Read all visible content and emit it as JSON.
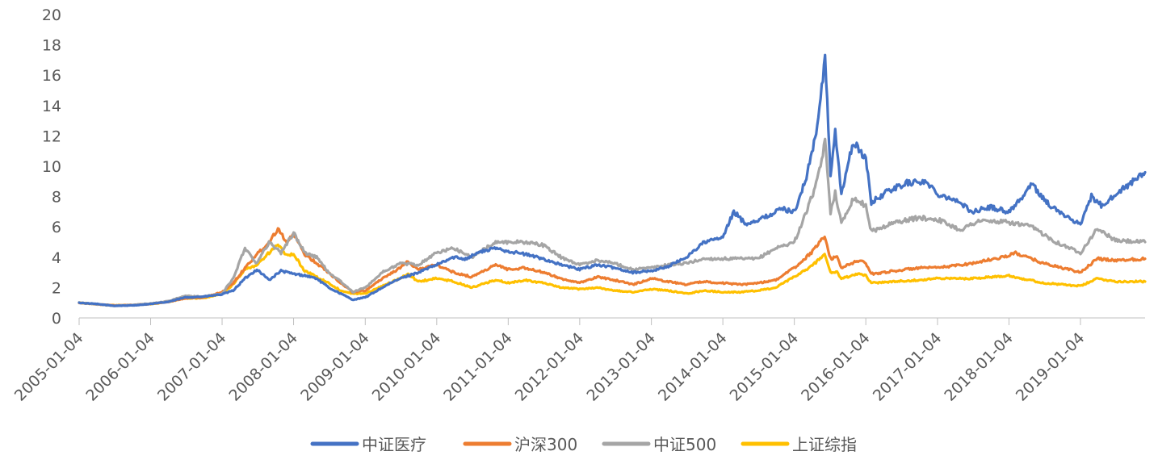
{
  "chart_data": {
    "type": "line",
    "title": "",
    "xlabel": "",
    "ylabel": "",
    "ylim": [
      0,
      20
    ],
    "y_ticks": [
      "0",
      "2",
      "4",
      "6",
      "8",
      "10",
      "12",
      "14",
      "16",
      "18",
      "20"
    ],
    "x_ticks": [
      "2005-01-04",
      "2006-01-04",
      "2007-01-04",
      "2008-01-04",
      "2009-01-04",
      "2010-01-04",
      "2011-01-04",
      "2012-01-04",
      "2013-01-04",
      "2014-01-04",
      "2015-01-04",
      "2016-01-04",
      "2017-01-04",
      "2018-01-04",
      "2019-01-04"
    ],
    "x_range": [
      "2005-01-04",
      "2019-11-30"
    ],
    "grid": false,
    "legend_position": "bottom",
    "series": [
      {
        "name": "中证医疗",
        "color": "#4472C4",
        "points": [
          [
            "2005-01-04",
            1.0
          ],
          [
            "2005-04-01",
            0.92
          ],
          [
            "2005-07-01",
            0.8
          ],
          [
            "2005-10-01",
            0.82
          ],
          [
            "2006-01-04",
            0.92
          ],
          [
            "2006-04-01",
            1.05
          ],
          [
            "2006-07-01",
            1.35
          ],
          [
            "2006-10-01",
            1.4
          ],
          [
            "2007-01-04",
            1.55
          ],
          [
            "2007-03-01",
            1.8
          ],
          [
            "2007-05-01",
            2.6
          ],
          [
            "2007-07-01",
            3.2
          ],
          [
            "2007-09-01",
            2.5
          ],
          [
            "2007-11-01",
            3.1
          ],
          [
            "2008-01-04",
            2.9
          ],
          [
            "2008-03-01",
            2.8
          ],
          [
            "2008-05-01",
            2.6
          ],
          [
            "2008-07-01",
            2.0
          ],
          [
            "2008-09-01",
            1.6
          ],
          [
            "2008-11-01",
            1.2
          ],
          [
            "2009-01-04",
            1.35
          ],
          [
            "2009-04-01",
            2.0
          ],
          [
            "2009-07-01",
            2.6
          ],
          [
            "2009-10-01",
            3.0
          ],
          [
            "2010-01-04",
            3.5
          ],
          [
            "2010-04-01",
            4.0
          ],
          [
            "2010-06-01",
            3.9
          ],
          [
            "2010-08-01",
            4.3
          ],
          [
            "2010-11-01",
            4.6
          ],
          [
            "2011-01-04",
            4.4
          ],
          [
            "2011-04-01",
            4.2
          ],
          [
            "2011-07-01",
            3.9
          ],
          [
            "2011-10-01",
            3.5
          ],
          [
            "2012-01-04",
            3.2
          ],
          [
            "2012-04-01",
            3.5
          ],
          [
            "2012-07-01",
            3.3
          ],
          [
            "2012-10-01",
            3.0
          ],
          [
            "2013-01-04",
            3.1
          ],
          [
            "2013-04-01",
            3.4
          ],
          [
            "2013-07-01",
            4.0
          ],
          [
            "2013-10-01",
            5.0
          ],
          [
            "2014-01-04",
            5.3
          ],
          [
            "2014-03-01",
            7.0
          ],
          [
            "2014-05-01",
            6.2
          ],
          [
            "2014-08-01",
            6.6
          ],
          [
            "2014-11-01",
            7.2
          ],
          [
            "2015-01-04",
            7.0
          ],
          [
            "2015-03-01",
            9.0
          ],
          [
            "2015-05-01",
            12.5
          ],
          [
            "2015-06-10",
            17.2
          ],
          [
            "2015-07-08",
            9.5
          ],
          [
            "2015-08-01",
            12.2
          ],
          [
            "2015-09-01",
            8.2
          ],
          [
            "2015-11-01",
            11.6
          ],
          [
            "2016-01-04",
            10.5
          ],
          [
            "2016-02-01",
            7.6
          ],
          [
            "2016-05-01",
            8.4
          ],
          [
            "2016-08-01",
            8.9
          ],
          [
            "2016-11-01",
            9.0
          ],
          [
            "2017-01-04",
            8.2
          ],
          [
            "2017-04-01",
            7.8
          ],
          [
            "2017-07-01",
            7.0
          ],
          [
            "2017-10-01",
            7.3
          ],
          [
            "2018-01-04",
            7.0
          ],
          [
            "2018-03-01",
            7.8
          ],
          [
            "2018-05-01",
            8.8
          ],
          [
            "2018-08-01",
            7.4
          ],
          [
            "2018-11-01",
            6.6
          ],
          [
            "2019-01-04",
            6.2
          ],
          [
            "2019-03-01",
            8.0
          ],
          [
            "2019-05-01",
            7.3
          ],
          [
            "2019-07-01",
            8.2
          ],
          [
            "2019-09-01",
            8.7
          ],
          [
            "2019-11-30",
            9.6
          ]
        ]
      },
      {
        "name": "沪深300",
        "color": "#ED7D31",
        "points": [
          [
            "2005-01-04",
            1.0
          ],
          [
            "2005-04-01",
            0.9
          ],
          [
            "2005-07-01",
            0.82
          ],
          [
            "2005-10-01",
            0.85
          ],
          [
            "2006-01-04",
            0.92
          ],
          [
            "2006-04-01",
            1.05
          ],
          [
            "2006-07-01",
            1.3
          ],
          [
            "2006-10-01",
            1.35
          ],
          [
            "2007-01-04",
            1.7
          ],
          [
            "2007-03-01",
            2.3
          ],
          [
            "2007-05-01",
            3.3
          ],
          [
            "2007-07-01",
            4.2
          ],
          [
            "2007-09-01",
            5.0
          ],
          [
            "2007-10-16",
            5.9
          ],
          [
            "2007-12-01",
            5.0
          ],
          [
            "2008-01-04",
            5.5
          ],
          [
            "2008-03-01",
            4.2
          ],
          [
            "2008-05-01",
            3.6
          ],
          [
            "2008-07-01",
            3.0
          ],
          [
            "2008-09-01",
            2.3
          ],
          [
            "2008-11-01",
            1.7
          ],
          [
            "2009-01-04",
            1.8
          ],
          [
            "2009-04-01",
            2.6
          ],
          [
            "2009-07-01",
            3.3
          ],
          [
            "2009-08-10",
            3.7
          ],
          [
            "2009-10-01",
            3.2
          ],
          [
            "2010-01-04",
            3.5
          ],
          [
            "2010-04-01",
            3.0
          ],
          [
            "2010-07-01",
            2.7
          ],
          [
            "2010-11-01",
            3.5
          ],
          [
            "2011-01-04",
            3.2
          ],
          [
            "2011-04-01",
            3.3
          ],
          [
            "2011-07-01",
            3.0
          ],
          [
            "2011-10-01",
            2.6
          ],
          [
            "2012-01-04",
            2.3
          ],
          [
            "2012-04-01",
            2.7
          ],
          [
            "2012-07-01",
            2.5
          ],
          [
            "2012-10-01",
            2.2
          ],
          [
            "2013-01-04",
            2.6
          ],
          [
            "2013-04-01",
            2.4
          ],
          [
            "2013-07-01",
            2.2
          ],
          [
            "2013-10-01",
            2.4
          ],
          [
            "2014-01-04",
            2.3
          ],
          [
            "2014-04-01",
            2.2
          ],
          [
            "2014-07-01",
            2.3
          ],
          [
            "2014-10-01",
            2.5
          ],
          [
            "2015-01-04",
            3.3
          ],
          [
            "2015-04-01",
            4.3
          ],
          [
            "2015-06-08",
            5.4
          ],
          [
            "2015-07-08",
            3.9
          ],
          [
            "2015-08-10",
            4.0
          ],
          [
            "2015-09-01",
            3.3
          ],
          [
            "2015-12-01",
            3.8
          ],
          [
            "2016-01-04",
            3.6
          ],
          [
            "2016-02-01",
            2.9
          ],
          [
            "2016-06-01",
            3.1
          ],
          [
            "2016-10-01",
            3.3
          ],
          [
            "2017-01-04",
            3.3
          ],
          [
            "2017-07-01",
            3.6
          ],
          [
            "2018-01-04",
            4.1
          ],
          [
            "2018-02-01",
            4.3
          ],
          [
            "2018-07-01",
            3.6
          ],
          [
            "2018-10-01",
            3.3
          ],
          [
            "2019-01-04",
            3.0
          ],
          [
            "2019-04-01",
            3.9
          ],
          [
            "2019-07-01",
            3.8
          ],
          [
            "2019-11-30",
            3.9
          ]
        ]
      },
      {
        "name": "中证500",
        "color": "#A5A5A5",
        "points": [
          [
            "2005-01-04",
            1.0
          ],
          [
            "2005-04-01",
            0.9
          ],
          [
            "2005-07-01",
            0.8
          ],
          [
            "2005-10-01",
            0.85
          ],
          [
            "2006-01-04",
            0.95
          ],
          [
            "2006-04-01",
            1.1
          ],
          [
            "2006-07-01",
            1.45
          ],
          [
            "2006-10-01",
            1.4
          ],
          [
            "2007-01-04",
            1.6
          ],
          [
            "2007-03-01",
            2.6
          ],
          [
            "2007-05-01",
            4.6
          ],
          [
            "2007-07-01",
            3.6
          ],
          [
            "2007-09-01",
            5.0
          ],
          [
            "2007-11-01",
            4.3
          ],
          [
            "2008-01-04",
            5.6
          ],
          [
            "2008-03-01",
            4.3
          ],
          [
            "2008-05-01",
            4.0
          ],
          [
            "2008-07-01",
            3.0
          ],
          [
            "2008-09-01",
            2.4
          ],
          [
            "2008-11-01",
            1.7
          ],
          [
            "2009-01-04",
            2.0
          ],
          [
            "2009-04-01",
            3.0
          ],
          [
            "2009-07-01",
            3.6
          ],
          [
            "2009-10-01",
            3.5
          ],
          [
            "2010-01-04",
            4.3
          ],
          [
            "2010-04-01",
            4.6
          ],
          [
            "2010-07-01",
            4.0
          ],
          [
            "2010-11-01",
            5.0
          ],
          [
            "2011-01-04",
            5.0
          ],
          [
            "2011-04-01",
            5.0
          ],
          [
            "2011-07-01",
            4.8
          ],
          [
            "2011-10-01",
            4.0
          ],
          [
            "2012-01-04",
            3.5
          ],
          [
            "2012-04-01",
            3.8
          ],
          [
            "2012-07-01",
            3.6
          ],
          [
            "2012-10-01",
            3.2
          ],
          [
            "2013-01-04",
            3.3
          ],
          [
            "2013-04-01",
            3.5
          ],
          [
            "2013-07-01",
            3.6
          ],
          [
            "2013-10-01",
            3.9
          ],
          [
            "2014-01-04",
            3.9
          ],
          [
            "2014-04-01",
            3.9
          ],
          [
            "2014-07-01",
            3.9
          ],
          [
            "2014-10-01",
            4.6
          ],
          [
            "2015-01-04",
            5.0
          ],
          [
            "2015-03-01",
            6.8
          ],
          [
            "2015-05-01",
            9.0
          ],
          [
            "2015-06-10",
            11.6
          ],
          [
            "2015-07-08",
            7.0
          ],
          [
            "2015-08-01",
            8.3
          ],
          [
            "2015-09-01",
            6.2
          ],
          [
            "2015-11-01",
            7.9
          ],
          [
            "2016-01-04",
            7.4
          ],
          [
            "2016-02-01",
            5.7
          ],
          [
            "2016-06-01",
            6.3
          ],
          [
            "2016-10-01",
            6.6
          ],
          [
            "2017-01-04",
            6.5
          ],
          [
            "2017-05-01",
            5.8
          ],
          [
            "2017-08-01",
            6.4
          ],
          [
            "2018-01-04",
            6.3
          ],
          [
            "2018-05-01",
            6.0
          ],
          [
            "2018-09-01",
            5.0
          ],
          [
            "2019-01-04",
            4.3
          ],
          [
            "2019-04-01",
            5.9
          ],
          [
            "2019-07-01",
            5.1
          ],
          [
            "2019-11-30",
            5.0
          ]
        ]
      },
      {
        "name": "上证综指",
        "color": "#FFC000",
        "points": [
          [
            "2005-01-04",
            1.0
          ],
          [
            "2005-04-01",
            0.9
          ],
          [
            "2005-07-01",
            0.83
          ],
          [
            "2005-10-01",
            0.85
          ],
          [
            "2006-01-04",
            0.92
          ],
          [
            "2006-04-01",
            1.05
          ],
          [
            "2006-07-01",
            1.3
          ],
          [
            "2006-10-01",
            1.3
          ],
          [
            "2007-01-04",
            1.6
          ],
          [
            "2007-03-01",
            2.2
          ],
          [
            "2007-05-01",
            3.2
          ],
          [
            "2007-07-01",
            3.5
          ],
          [
            "2007-09-01",
            4.3
          ],
          [
            "2007-10-16",
            4.8
          ],
          [
            "2007-12-01",
            4.1
          ],
          [
            "2008-01-04",
            4.2
          ],
          [
            "2008-03-01",
            3.1
          ],
          [
            "2008-05-01",
            2.7
          ],
          [
            "2008-07-01",
            2.3
          ],
          [
            "2008-09-01",
            1.8
          ],
          [
            "2008-11-01",
            1.6
          ],
          [
            "2009-01-04",
            1.6
          ],
          [
            "2009-04-01",
            2.1
          ],
          [
            "2009-07-01",
            2.6
          ],
          [
            "2009-08-10",
            2.9
          ],
          [
            "2009-10-01",
            2.4
          ],
          [
            "2010-01-04",
            2.6
          ],
          [
            "2010-04-01",
            2.4
          ],
          [
            "2010-07-01",
            2.0
          ],
          [
            "2010-11-01",
            2.5
          ],
          [
            "2011-01-04",
            2.3
          ],
          [
            "2011-04-01",
            2.5
          ],
          [
            "2011-07-01",
            2.3
          ],
          [
            "2011-10-01",
            2.0
          ],
          [
            "2012-01-04",
            1.9
          ],
          [
            "2012-04-01",
            2.0
          ],
          [
            "2012-07-01",
            1.8
          ],
          [
            "2012-10-01",
            1.7
          ],
          [
            "2013-01-04",
            1.9
          ],
          [
            "2013-04-01",
            1.8
          ],
          [
            "2013-07-01",
            1.6
          ],
          [
            "2013-10-01",
            1.8
          ],
          [
            "2014-01-04",
            1.7
          ],
          [
            "2014-04-01",
            1.7
          ],
          [
            "2014-07-01",
            1.8
          ],
          [
            "2014-10-01",
            2.0
          ],
          [
            "2015-01-04",
            2.7
          ],
          [
            "2015-04-01",
            3.4
          ],
          [
            "2015-06-08",
            4.2
          ],
          [
            "2015-07-08",
            3.0
          ],
          [
            "2015-08-10",
            3.0
          ],
          [
            "2015-09-01",
            2.6
          ],
          [
            "2015-12-01",
            2.9
          ],
          [
            "2016-01-04",
            2.8
          ],
          [
            "2016-02-01",
            2.3
          ],
          [
            "2016-06-01",
            2.4
          ],
          [
            "2016-10-01",
            2.5
          ],
          [
            "2017-01-04",
            2.6
          ],
          [
            "2017-07-01",
            2.6
          ],
          [
            "2018-01-04",
            2.8
          ],
          [
            "2018-02-01",
            2.7
          ],
          [
            "2018-07-01",
            2.3
          ],
          [
            "2018-10-01",
            2.2
          ],
          [
            "2019-01-04",
            2.1
          ],
          [
            "2019-04-01",
            2.6
          ],
          [
            "2019-07-01",
            2.4
          ],
          [
            "2019-11-30",
            2.4
          ]
        ]
      }
    ]
  }
}
